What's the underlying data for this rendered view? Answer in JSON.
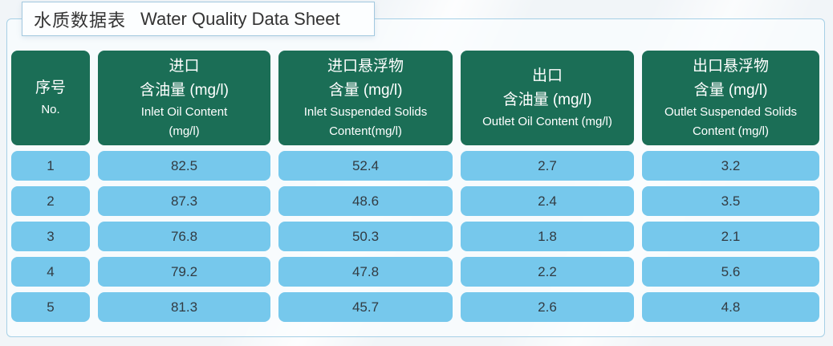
{
  "title": {
    "zh": "水质数据表",
    "en": "Water Quality Data Sheet"
  },
  "table": {
    "headers": {
      "no": {
        "zh": "序号",
        "en": "No."
      },
      "inlet_oil": {
        "zh1": "进口",
        "zh2": "含油量 (mg/l)",
        "en1": "Inlet Oil Content",
        "en2": "(mg/l)"
      },
      "inlet_ss": {
        "zh1": "进口悬浮物",
        "zh2": "含量 (mg/l)",
        "en1": "Inlet Suspended Solids",
        "en2": "Content(mg/l)"
      },
      "outlet_oil": {
        "zh1": "出口",
        "zh2": "含油量 (mg/l)",
        "en1": "Outlet Oil Content (mg/l)"
      },
      "outlet_ss": {
        "zh1": "出口悬浮物",
        "zh2": "含量 (mg/l)",
        "en1": "Outlet Suspended Solids",
        "en2": "Content (mg/l)"
      }
    },
    "rows": [
      [
        "1",
        "82.5",
        "52.4",
        "2.7",
        "3.2"
      ],
      [
        "2",
        "87.3",
        "48.6",
        "2.4",
        "3.5"
      ],
      [
        "3",
        "76.8",
        "50.3",
        "1.8",
        "2.1"
      ],
      [
        "4",
        "79.2",
        "47.8",
        "2.2",
        "5.6"
      ],
      [
        "5",
        "81.3",
        "45.7",
        "2.6",
        "4.8"
      ]
    ]
  },
  "chart_data": {
    "type": "table",
    "title": "水质数据表 Water Quality Data Sheet",
    "columns": [
      "序号 No.",
      "进口含油量 (mg/l) Inlet Oil Content (mg/l)",
      "进口悬浮物含量 (mg/l) Inlet Suspended Solids Content(mg/l)",
      "出口含油量 (mg/l) Outlet Oil Content (mg/l)",
      "出口悬浮物含量 (mg/l) Outlet Suspended Solids Content (mg/l)"
    ],
    "rows": [
      [
        1,
        82.5,
        52.4,
        2.7,
        3.2
      ],
      [
        2,
        87.3,
        48.6,
        2.4,
        3.5
      ],
      [
        3,
        76.8,
        50.3,
        1.8,
        2.1
      ],
      [
        4,
        79.2,
        47.8,
        2.2,
        5.6
      ],
      [
        5,
        81.3,
        45.7,
        2.6,
        4.8
      ]
    ]
  },
  "colors": {
    "header_bg": "#1B6E56",
    "cell_bg": "#76C8EC",
    "panel_border": "#A6D0E6",
    "title_border": "#A2C8DF",
    "page_bg": "#F1F5F8",
    "header_text": "#FFFFFF",
    "cell_text": "#323B42",
    "title_text": "#333333"
  }
}
